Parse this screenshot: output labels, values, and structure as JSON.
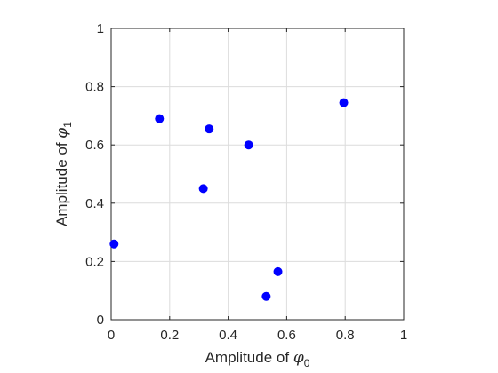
{
  "chart_data": {
    "type": "scatter",
    "xlabel": {
      "text": "Amplitude of ",
      "symbol": "φ",
      "subscript": "0"
    },
    "ylabel": {
      "text": "Amplitude of ",
      "symbol": "φ",
      "subscript": "1"
    },
    "xlim": [
      0,
      1
    ],
    "ylim": [
      0,
      1
    ],
    "xticks": [
      0,
      0.2,
      0.4,
      0.6,
      0.8,
      1
    ],
    "yticks": [
      0,
      0.2,
      0.4,
      0.6,
      0.8,
      1
    ],
    "xtick_labels": [
      "0",
      "0.2",
      "0.4",
      "0.6",
      "0.8",
      "1"
    ],
    "ytick_labels": [
      "0",
      "0.2",
      "0.4",
      "0.6",
      "0.8",
      "1"
    ],
    "grid": true,
    "marker_color": "#0000ff",
    "series": [
      {
        "points": [
          {
            "x": 0.01,
            "y": 0.26
          },
          {
            "x": 0.165,
            "y": 0.69
          },
          {
            "x": 0.315,
            "y": 0.45
          },
          {
            "x": 0.335,
            "y": 0.655
          },
          {
            "x": 0.47,
            "y": 0.6
          },
          {
            "x": 0.53,
            "y": 0.08
          },
          {
            "x": 0.57,
            "y": 0.165
          },
          {
            "x": 0.795,
            "y": 0.745
          }
        ]
      }
    ]
  }
}
